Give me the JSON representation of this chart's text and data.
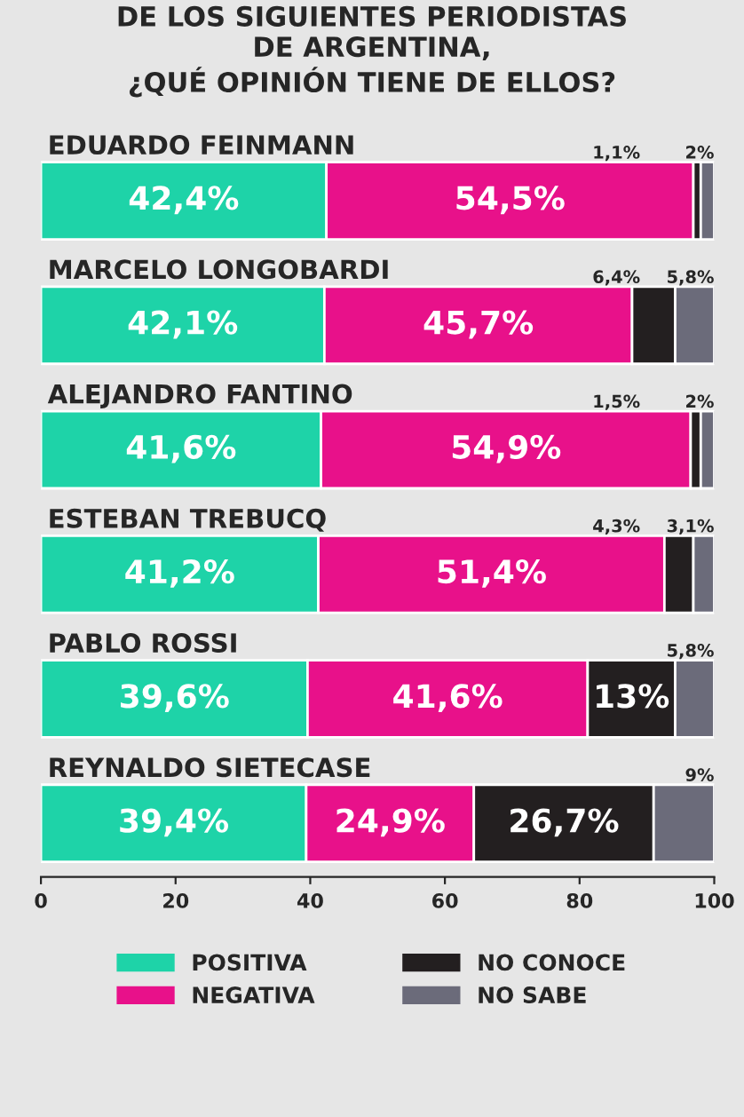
{
  "chart_data": {
    "type": "bar",
    "orientation": "horizontal",
    "stacked": true,
    "title": "DE LOS SIGUIENTES PERIODISTAS\nDE ARGENTINA,\n¿QUÉ OPINIÓN TIENE DE ELLOS?",
    "categories": [
      "EDUARDO FEINMANN",
      "MARCELO LONGOBARDI",
      "ALEJANDRO FANTINO",
      "ESTEBAN TREBUCQ",
      "PABLO ROSSI",
      "REYNALDO SIETECASE"
    ],
    "series": [
      {
        "name": "POSITIVA",
        "color": "#1ed3a8",
        "values": [
          42.4,
          42.1,
          41.6,
          41.2,
          39.6,
          39.4
        ],
        "value_labels": [
          "42,4%",
          "42,1%",
          "41,6%",
          "41,2%",
          "39,6%",
          "39,4%"
        ]
      },
      {
        "name": "NEGATIVA",
        "color": "#e8118a",
        "values": [
          54.5,
          45.7,
          54.9,
          51.4,
          41.6,
          24.9
        ],
        "value_labels": [
          "54,5%",
          "45,7%",
          "54,9%",
          "51,4%",
          "41,6%",
          "24,9%"
        ]
      },
      {
        "name": "NO CONOCE",
        "color": "#231f20",
        "values": [
          1.1,
          6.4,
          1.5,
          4.3,
          13,
          26.7
        ],
        "value_labels": [
          "1,1%",
          "6,4%",
          "1,5%",
          "4,3%",
          "13%",
          "26,7%"
        ]
      },
      {
        "name": "NO SABE",
        "color": "#6b6b7a",
        "values": [
          2,
          5.8,
          2,
          3.1,
          5.8,
          9
        ],
        "value_labels": [
          "2%",
          "5,8%",
          "2%",
          "3,1%",
          "5,8%",
          "9%"
        ]
      }
    ],
    "xlim": [
      0,
      100
    ],
    "xticks": [
      0,
      20,
      40,
      60,
      80,
      100
    ],
    "legend": "bottom",
    "grid": false
  }
}
